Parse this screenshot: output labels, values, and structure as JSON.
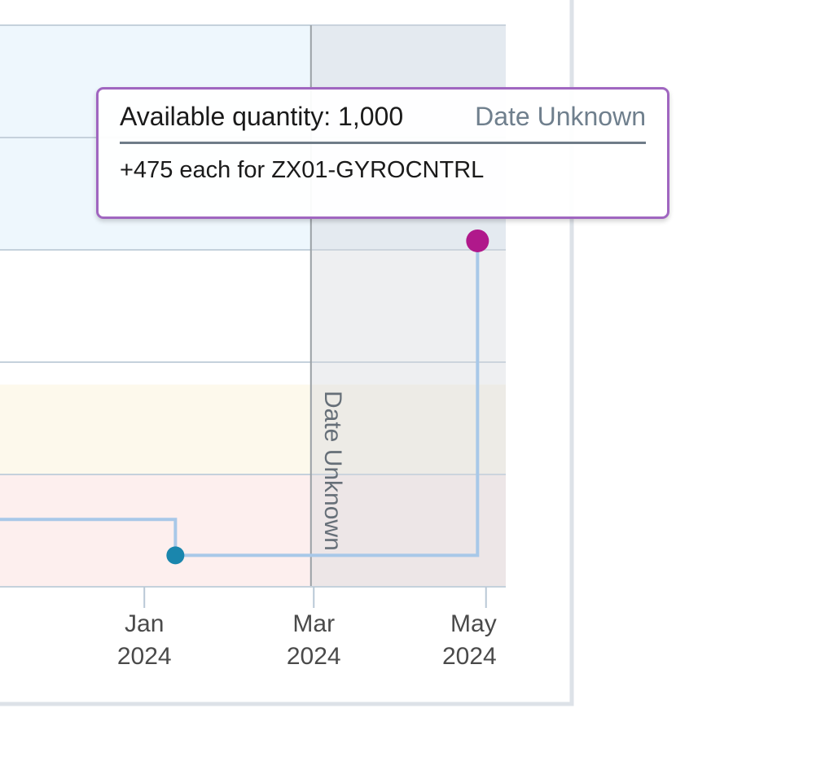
{
  "chart_data": {
    "type": "line",
    "step": true,
    "x_axis": {
      "type": "date",
      "ticks": [
        {
          "date": "2024-01-01",
          "month": "Jan",
          "year": "2024"
        },
        {
          "date": "2024-03-01",
          "month": "Mar",
          "year": "2024"
        },
        {
          "date": "2024-05-01",
          "month": "May",
          "year": "2024"
        }
      ],
      "range": [
        "2023-11-08",
        "2024-05-08"
      ]
    },
    "y_axis": {
      "range": [
        -1000,
        1500
      ],
      "gridlines": [
        -1000,
        -500,
        0,
        500,
        1000,
        1500
      ],
      "tick_labels_visible": false
    },
    "bands": [
      {
        "from": 500,
        "to": 1500,
        "color": "#eef7fd"
      },
      {
        "from": -100,
        "to": 500,
        "color": "#ffffff"
      },
      {
        "from": -500,
        "to": -100,
        "color": "#fdf9ec"
      },
      {
        "from": -1000,
        "to": -500,
        "color": "#fdefee"
      }
    ],
    "unknown_date_region": {
      "from": "2024-02-29",
      "label": "Date Unknown",
      "shade": "#d6dadd"
    },
    "series": [
      {
        "line_color": "#a8c8e8",
        "points": [
          {
            "x": "2023-11-08",
            "y": -700
          },
          {
            "x": "2024-01-12",
            "y": -700
          },
          {
            "x": "2024-01-12",
            "y": -860
          },
          {
            "x": "2024-02-29",
            "y": -860
          },
          {
            "x": "2024-04-28",
            "y": -860
          },
          {
            "x": "2024-04-28",
            "y": 540
          }
        ],
        "markers": [
          {
            "x": "2024-01-12",
            "y": -860,
            "color": "#1a86ad"
          },
          {
            "x": "2024-04-28",
            "y": 540,
            "color": "#b0198b"
          }
        ]
      }
    ]
  },
  "tooltip": {
    "title": "Available quantity: 1,000",
    "date": "Date Unknown",
    "detail": "+475 each for ZX01-GYROCNTRL",
    "border_color": "#a066c0"
  }
}
